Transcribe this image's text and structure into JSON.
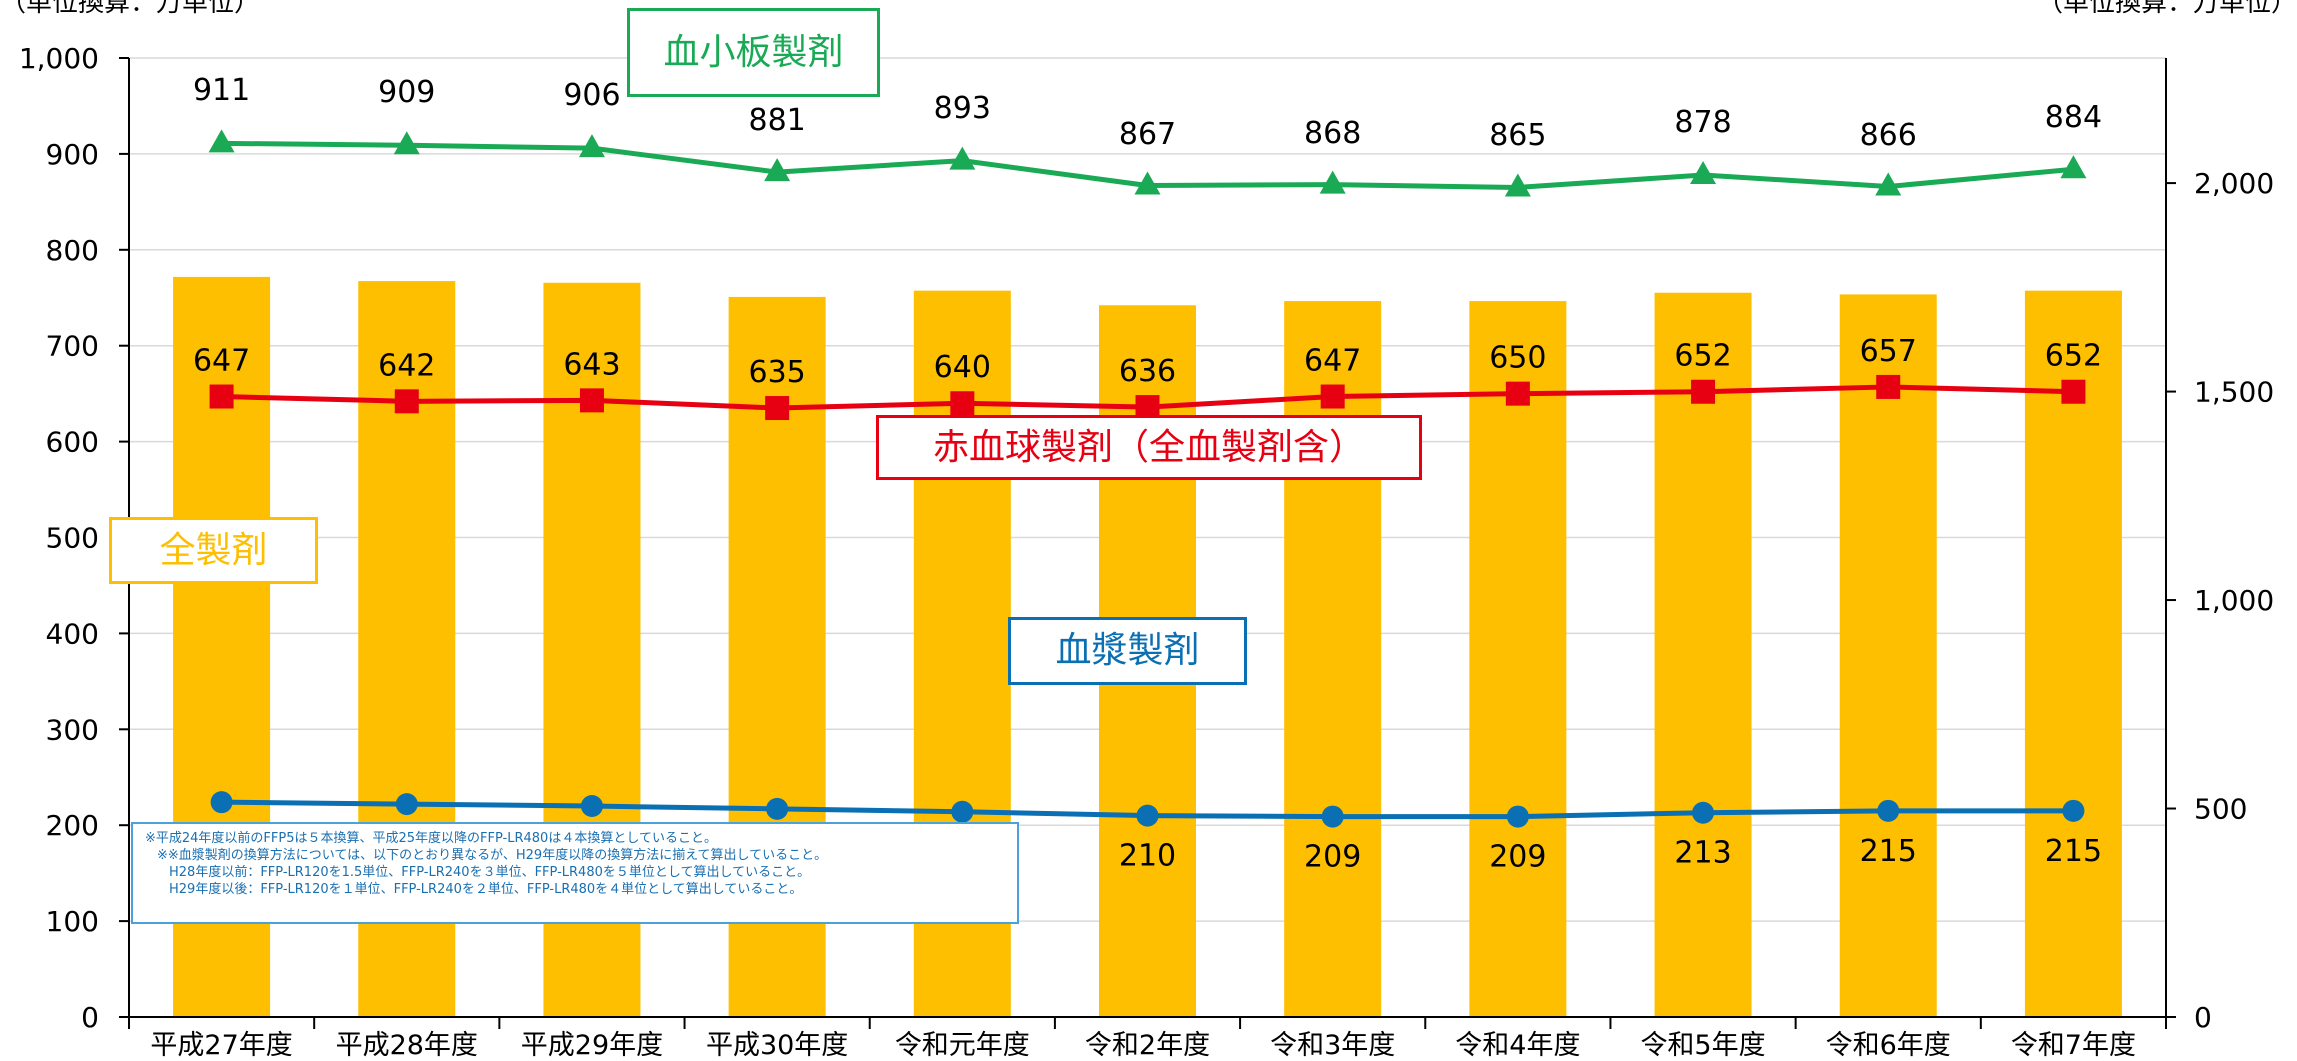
{
  "unit_left": "（単位換算：万単位）",
  "unit_right": "（単位換算：万単位）",
  "labels": {
    "platelet": "血小板製剤",
    "rbc": "赤血球製剤（全血製剤含）",
    "all": "全製剤",
    "plasma": "血漿製剤"
  },
  "note": {
    "line1": "※平成24年度以前のFFP5は５本換算、平成25年度以降のFFP-LR480は４本換算としていること。",
    "line2": "※※血漿製剤の換算方法については、以下のとおり異なるが、H29年度以降の換算方法に揃えて算出していること。",
    "line3": "H28年度以前：FFP-LR120を1.5単位、FFP-LR240を３単位、FFP-LR480を５単位として算出していること。",
    "line4": "H29年度以後：FFP-LR120を１単位、FFP-LR240を２単位、FFP-LR480を４単位として算出していること。"
  },
  "colors": {
    "bar": "#fdbf00",
    "platelet": "#1aaa55",
    "rbc": "#e60012",
    "plasma": "#0a6fb3",
    "grid": "#d9d9d9",
    "axis": "#000000"
  },
  "chart_data": {
    "type": "bar+line",
    "categories": [
      "平成27年度",
      "平成28年度",
      "平成29年度",
      "平成30年度",
      "令和元年度",
      "令和2年度",
      "令和3年度",
      "令和4年度",
      "令和5年度",
      "令和6年度",
      "令和7年度"
    ],
    "left_axis": {
      "ylim": [
        0,
        1000
      ],
      "ticks": [
        "0",
        "100",
        "200",
        "300",
        "400",
        "500",
        "600",
        "700",
        "800",
        "900",
        "1,000"
      ]
    },
    "right_axis": {
      "ylim": [
        0,
        2300
      ],
      "ticks": [
        "0",
        "500",
        "1,000",
        "1,500",
        "2,000"
      ]
    },
    "series": [
      {
        "name": "全製剤",
        "type": "bar",
        "axis": "right",
        "values": [
          1775,
          1765,
          1761,
          1727,
          1742,
          1707,
          1717,
          1717,
          1737,
          1733,
          1742
        ]
      },
      {
        "name": "血小板製剤",
        "type": "line",
        "marker": "triangle",
        "axis": "left",
        "values": [
          911,
          909,
          906,
          881,
          893,
          867,
          868,
          865,
          878,
          866,
          884
        ]
      },
      {
        "name": "赤血球製剤（全血製剤含）",
        "type": "line",
        "marker": "square",
        "axis": "left",
        "values": [
          647,
          642,
          643,
          635,
          640,
          636,
          647,
          650,
          652,
          657,
          652
        ]
      },
      {
        "name": "血漿製剤",
        "type": "line",
        "marker": "circle",
        "axis": "left",
        "values": [
          224,
          222,
          220,
          217,
          214,
          210,
          209,
          209,
          213,
          215,
          215
        ],
        "labels_shown": [
          null,
          null,
          null,
          null,
          null,
          "210",
          "209",
          "209",
          "213",
          "215",
          "215"
        ]
      }
    ]
  }
}
